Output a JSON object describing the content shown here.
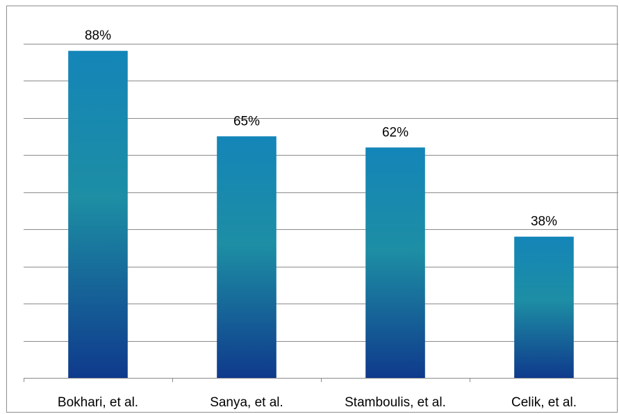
{
  "chart_data": {
    "type": "bar",
    "categories": [
      "Bokhari, et al.",
      "Sanya, et al.",
      "Stamboulis, et al.",
      "Celik, et al."
    ],
    "values": [
      88,
      65,
      62,
      38
    ],
    "data_labels": [
      "88%",
      "65%",
      "62%",
      "38%"
    ],
    "unit": "%",
    "ylim": [
      0,
      100
    ],
    "y_gridline_step": 10,
    "y_tick_labels_shown": false,
    "grid": true,
    "legend": "none",
    "title": "",
    "xlabel": "",
    "ylabel": "",
    "colors": {
      "bar_top": "#1485b8",
      "bar_mid": "#1d8ea4",
      "bar_bottom": "#0f3a8c",
      "gridline": "#8a8a8a"
    }
  }
}
